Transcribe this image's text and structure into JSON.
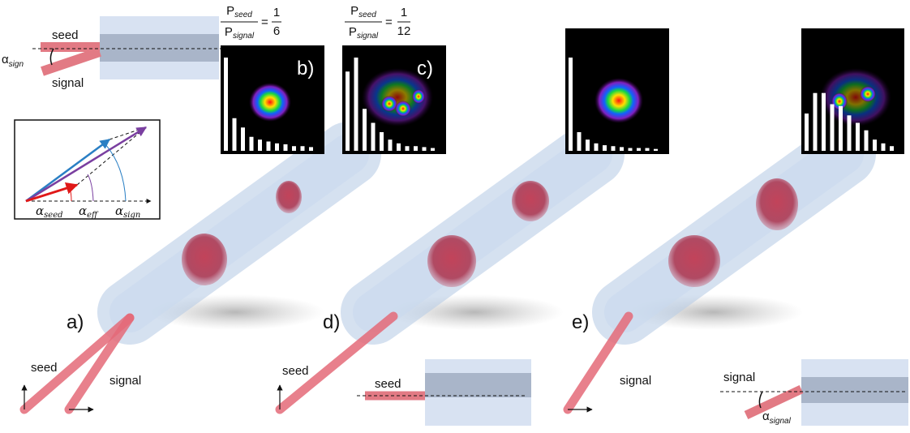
{
  "panel_labels": {
    "a": "a)",
    "b": "b)",
    "c": "c)",
    "d": "d)",
    "e": "e)"
  },
  "top_left": {
    "seed": "seed",
    "signal": "signal",
    "angle": {
      "symbol": "α",
      "sub": "sign"
    }
  },
  "vector_diagram": {
    "seed": {
      "symbol": "α",
      "sub": "seed"
    },
    "eff": {
      "symbol": "α",
      "sub": "eff"
    },
    "sign": {
      "symbol": "α",
      "sub": "sign"
    }
  },
  "ratios": [
    {
      "num": {
        "symbol": "P",
        "sub": "seed"
      },
      "den": {
        "symbol": "P",
        "sub": "signal"
      },
      "eq": "=",
      "frac_num": "1",
      "frac_den": "6"
    },
    {
      "num": {
        "symbol": "P",
        "sub": "seed"
      },
      "den": {
        "symbol": "P",
        "sub": "signal"
      },
      "eq": "=",
      "frac_num": "1",
      "frac_den": "12"
    }
  ],
  "fiber_labels": {
    "a_seed": "seed",
    "a_signal": "signal",
    "d_seed": "seed",
    "e_signal": "signal"
  },
  "bottom_d": {
    "seed": "seed"
  },
  "bottom_e": {
    "signal": "signal",
    "angle": {
      "symbol": "α",
      "sub": "signal"
    }
  },
  "insets": [
    {
      "bars": [
        100,
        35,
        25,
        15,
        12,
        10,
        8,
        7,
        5,
        5,
        4
      ]
    },
    {
      "bars": [
        85,
        100,
        45,
        30,
        20,
        12,
        8,
        5,
        5,
        4,
        3
      ]
    },
    {
      "bars": [
        100,
        20,
        12,
        8,
        6,
        5,
        4,
        3,
        3,
        3,
        2
      ]
    },
    {
      "bars": [
        40,
        62,
        62,
        50,
        48,
        38,
        30,
        22,
        12,
        8,
        5
      ]
    }
  ]
}
